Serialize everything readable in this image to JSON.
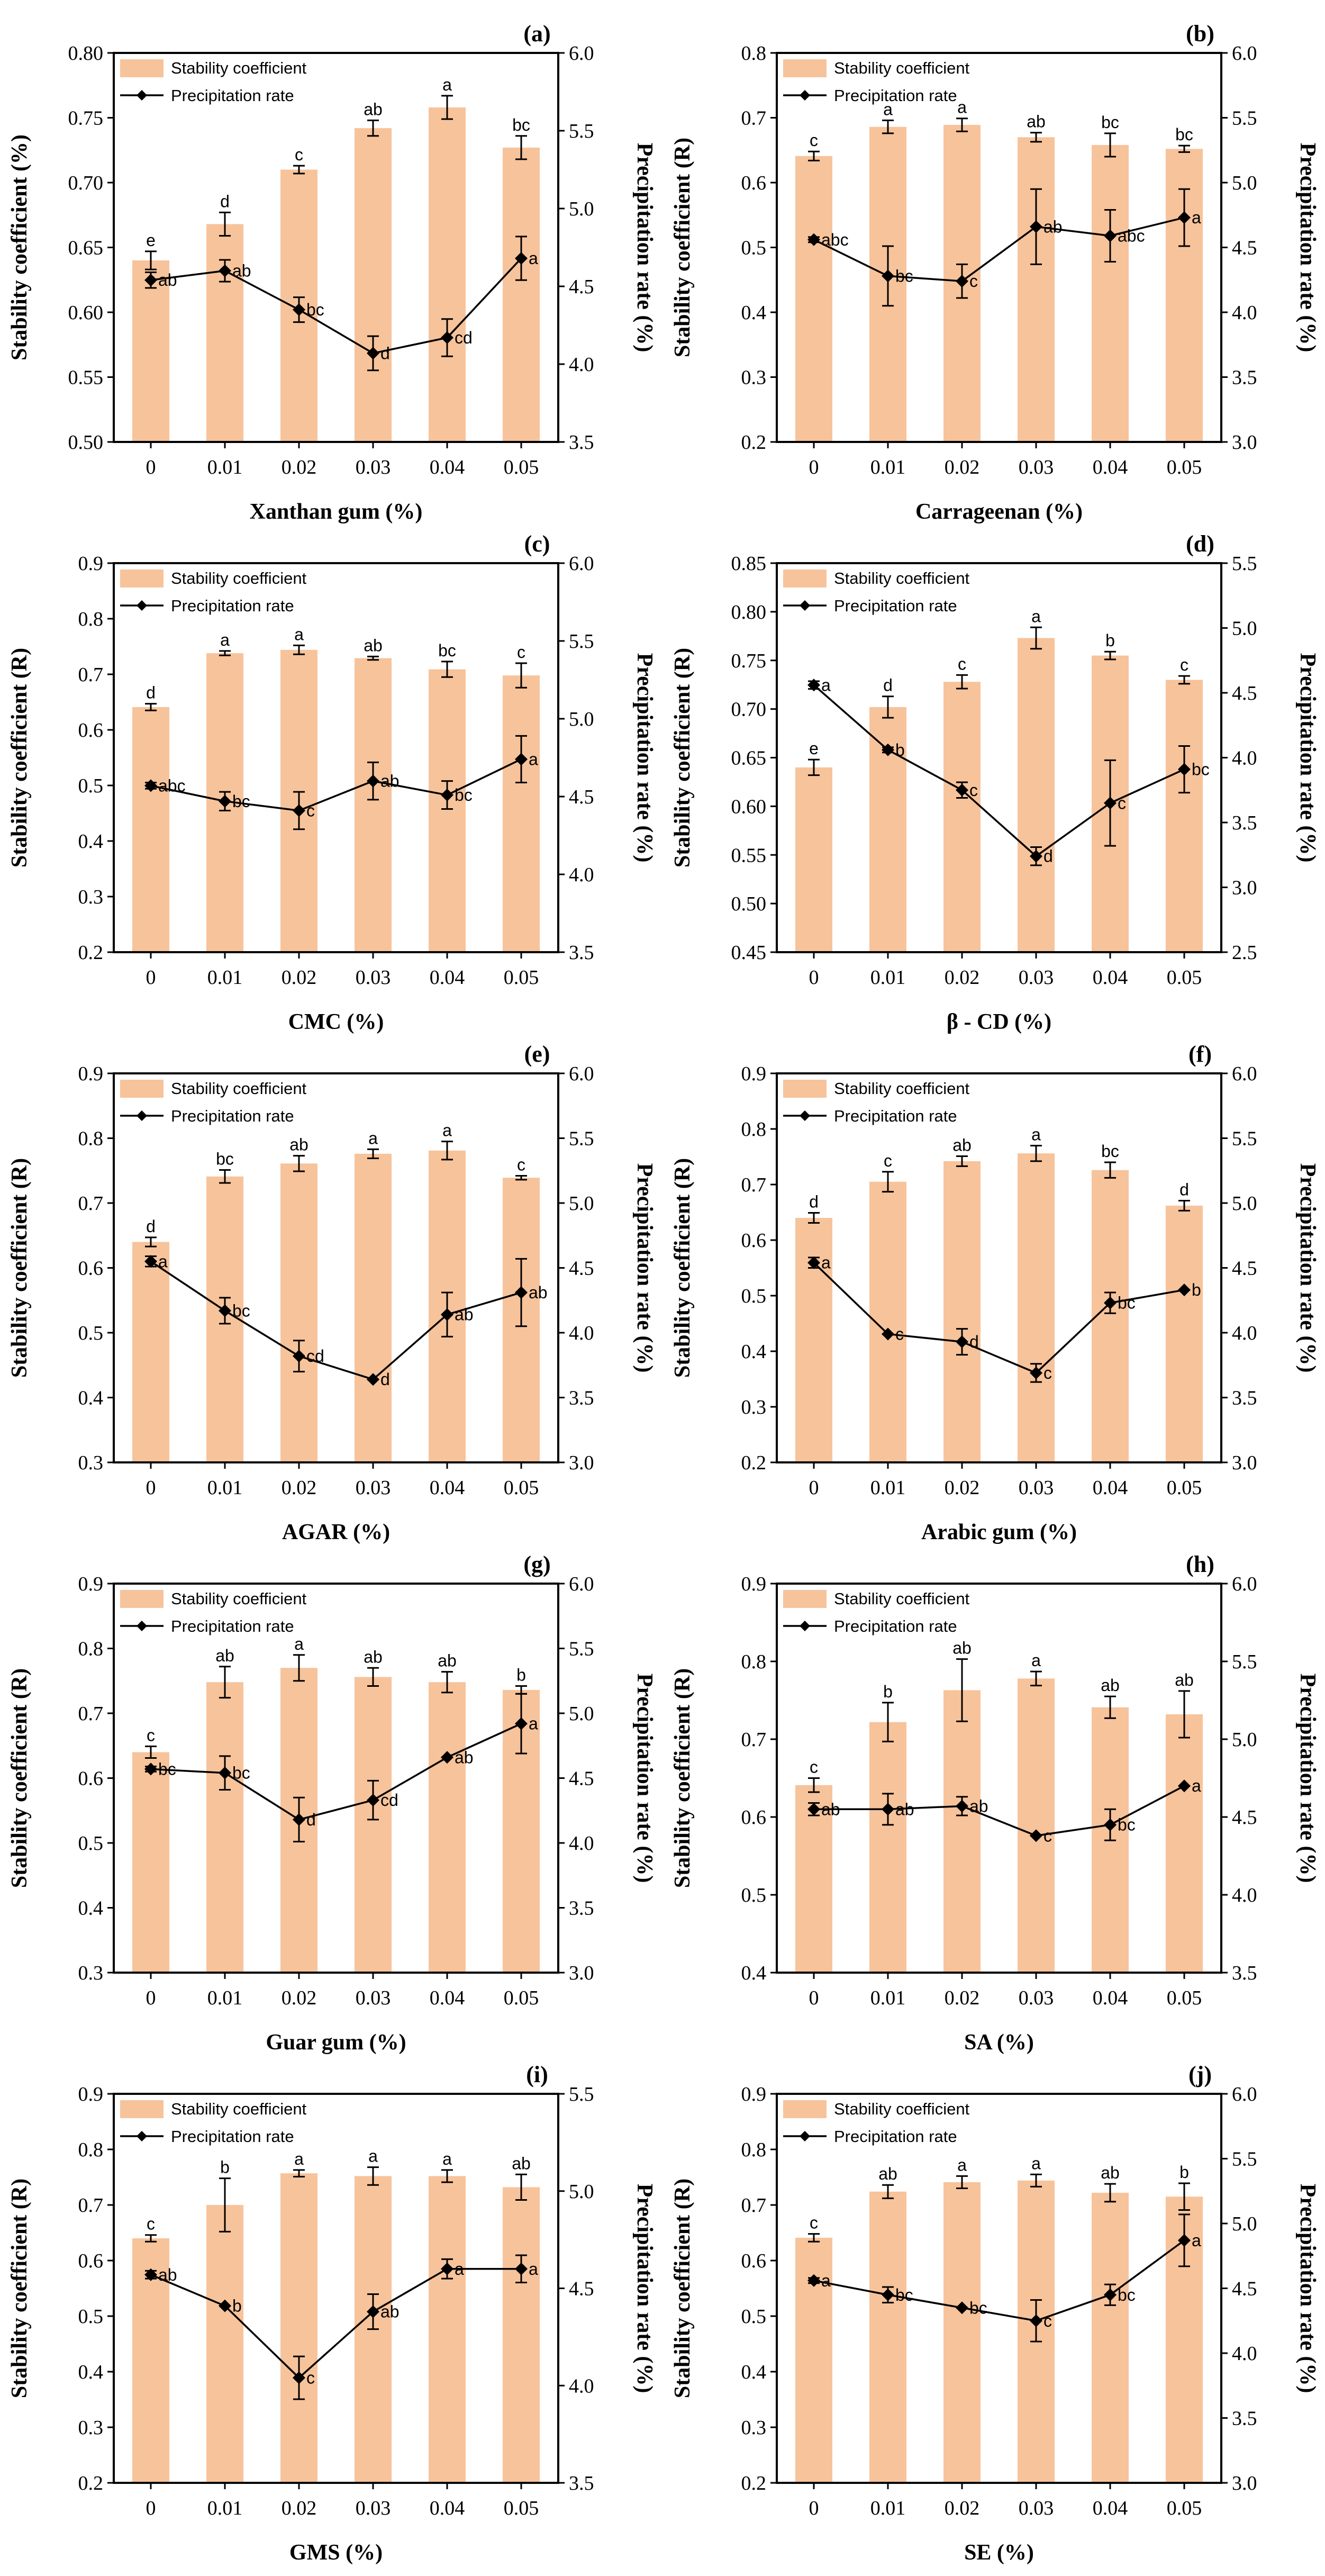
{
  "figure": {
    "legend": {
      "bar_label": "Stability coefficient",
      "line_label": "Precipitation rate"
    },
    "colors": {
      "bar": "#f7c39b",
      "line": "#000000",
      "marker": "#000000"
    }
  },
  "chart_data": [
    {
      "type": "bar+line",
      "panel": "(a)",
      "xlabel": "Xanthan gum (%)",
      "ylabel_left": "Stability coefficient (%)",
      "ylabel_right": "Precipitation rate (%)",
      "categories": [
        "0",
        "0.01",
        "0.02",
        "0.03",
        "0.04",
        "0.05"
      ],
      "left_ticks": [
        "0.50",
        "0.55",
        "0.60",
        "0.65",
        "0.70",
        "0.75",
        "0.80"
      ],
      "right_ticks": [
        "3.5",
        "4.0",
        "4.5",
        "5.0",
        "5.5",
        "6.0"
      ],
      "ylim_left": [
        0.5,
        0.8
      ],
      "ylim_right": [
        3.5,
        6.0
      ],
      "stability": [
        0.64,
        0.668,
        0.71,
        0.742,
        0.758,
        0.727
      ],
      "stability_err": [
        0.007,
        0.009,
        0.003,
        0.006,
        0.009,
        0.009
      ],
      "stability_letters": [
        "e",
        "d",
        "c",
        "ab",
        "a",
        "bc"
      ],
      "precip": [
        4.54,
        4.6,
        4.35,
        4.07,
        4.17,
        4.68
      ],
      "precip_err": [
        0.05,
        0.07,
        0.08,
        0.11,
        0.12,
        0.14
      ],
      "precip_letters": [
        "ab",
        "ab",
        "bc",
        "d",
        "cd",
        "a"
      ]
    },
    {
      "type": "bar+line",
      "panel": "(b)",
      "xlabel": "Carrageenan (%)",
      "ylabel_left": "Stability coefficient (R)",
      "ylabel_right": "Precipitation rate (%)",
      "categories": [
        "0",
        "0.01",
        "0.02",
        "0.03",
        "0.04",
        "0.05"
      ],
      "left_ticks": [
        "0.2",
        "0.3",
        "0.4",
        "0.5",
        "0.6",
        "0.7",
        "0.8"
      ],
      "right_ticks": [
        "3.0",
        "3.5",
        "4.0",
        "4.5",
        "5.0",
        "5.5",
        "6.0"
      ],
      "ylim_left": [
        0.2,
        0.8
      ],
      "ylim_right": [
        3.0,
        6.0
      ],
      "stability": [
        0.641,
        0.686,
        0.689,
        0.67,
        0.658,
        0.652
      ],
      "stability_err": [
        0.007,
        0.01,
        0.01,
        0.007,
        0.018,
        0.005
      ],
      "stability_letters": [
        "c",
        "a",
        "a",
        "ab",
        "bc",
        "bc"
      ],
      "precip": [
        4.56,
        4.28,
        4.24,
        4.66,
        4.59,
        4.73
      ],
      "precip_err": [
        0.02,
        0.23,
        0.13,
        0.29,
        0.2,
        0.22
      ],
      "precip_letters": [
        "abc",
        "bc",
        "c",
        "ab",
        "abc",
        "a"
      ]
    },
    {
      "type": "bar+line",
      "panel": "(c)",
      "xlabel": "CMC (%)",
      "ylabel_left": "Stability coefficient (R)",
      "ylabel_right": "Precipitation rate (%)",
      "categories": [
        "0",
        "0.01",
        "0.02",
        "0.03",
        "0.04",
        "0.05"
      ],
      "left_ticks": [
        "0.2",
        "0.3",
        "0.4",
        "0.5",
        "0.6",
        "0.7",
        "0.8",
        "0.9"
      ],
      "right_ticks": [
        "3.5",
        "4.0",
        "4.5",
        "5.0",
        "5.5",
        "6.0"
      ],
      "ylim_left": [
        0.2,
        0.9
      ],
      "ylim_right": [
        3.5,
        6.0
      ],
      "stability": [
        0.641,
        0.738,
        0.744,
        0.729,
        0.709,
        0.698
      ],
      "stability_err": [
        0.006,
        0.004,
        0.008,
        0.003,
        0.014,
        0.022
      ],
      "stability_letters": [
        "d",
        "a",
        "a",
        "ab",
        "bc",
        "c"
      ],
      "precip": [
        4.57,
        4.47,
        4.41,
        4.6,
        4.51,
        4.74
      ],
      "precip_err": [
        0.02,
        0.06,
        0.12,
        0.12,
        0.09,
        0.15
      ],
      "precip_letters": [
        "abc",
        "bc",
        "c",
        "ab",
        "bc",
        "a"
      ]
    },
    {
      "type": "bar+line",
      "panel": "(d)",
      "xlabel": "β - CD (%)",
      "ylabel_left": "Stability coefficient (R)",
      "ylabel_right": "Precipitation rate (%)",
      "categories": [
        "0",
        "0.01",
        "0.02",
        "0.03",
        "0.04",
        "0.05"
      ],
      "left_ticks": [
        "0.45",
        "0.50",
        "0.55",
        "0.60",
        "0.65",
        "0.70",
        "0.75",
        "0.80",
        "0.85"
      ],
      "right_ticks": [
        "2.5",
        "3.0",
        "3.5",
        "4.0",
        "4.5",
        "5.0",
        "5.5"
      ],
      "ylim_left": [
        0.45,
        0.85
      ],
      "ylim_right": [
        2.5,
        5.5
      ],
      "stability": [
        0.64,
        0.702,
        0.728,
        0.773,
        0.755,
        0.73
      ],
      "stability_err": [
        0.008,
        0.011,
        0.007,
        0.011,
        0.004,
        0.004
      ],
      "stability_letters": [
        "e",
        "d",
        "c",
        "a",
        "b",
        "c"
      ],
      "precip": [
        4.56,
        4.06,
        3.75,
        3.24,
        3.65,
        3.91
      ],
      "precip_err": [
        0.03,
        0.02,
        0.06,
        0.07,
        0.33,
        0.18
      ],
      "precip_letters": [
        "a",
        "b",
        "c",
        "d",
        "c",
        "bc"
      ]
    },
    {
      "type": "bar+line",
      "panel": "(e)",
      "xlabel": "AGAR (%)",
      "ylabel_left": "Stability coefficient (R)",
      "ylabel_right": "Precipitation rate (%)",
      "categories": [
        "0",
        "0.01",
        "0.02",
        "0.03",
        "0.04",
        "0.05"
      ],
      "left_ticks": [
        "0.3",
        "0.4",
        "0.5",
        "0.6",
        "0.7",
        "0.8",
        "0.9"
      ],
      "right_ticks": [
        "3.0",
        "3.5",
        "4.0",
        "4.5",
        "5.0",
        "5.5",
        "6.0"
      ],
      "ylim_left": [
        0.3,
        0.9
      ],
      "ylim_right": [
        3.0,
        6.0
      ],
      "stability": [
        0.64,
        0.741,
        0.761,
        0.776,
        0.781,
        0.739
      ],
      "stability_err": [
        0.007,
        0.01,
        0.012,
        0.007,
        0.014,
        0.003
      ],
      "stability_letters": [
        "d",
        "bc",
        "ab",
        "a",
        "a",
        "c"
      ],
      "precip": [
        4.55,
        4.17,
        3.82,
        3.64,
        4.14,
        4.31
      ],
      "precip_err": [
        0.04,
        0.1,
        0.12,
        0.0,
        0.17,
        0.26
      ],
      "precip_letters": [
        "a",
        "bc",
        "cd",
        "d",
        "ab",
        "ab"
      ]
    },
    {
      "type": "bar+line",
      "panel": "(f)",
      "xlabel": "Arabic gum (%)",
      "ylabel_left": "Stability coefficient (R)",
      "ylabel_right": "Precipitation rate (%)",
      "categories": [
        "0",
        "0.01",
        "0.02",
        "0.03",
        "0.04",
        "0.05"
      ],
      "left_ticks": [
        "0.2",
        "0.3",
        "0.4",
        "0.5",
        "0.6",
        "0.7",
        "0.8",
        "0.9"
      ],
      "right_ticks": [
        "3.0",
        "3.5",
        "4.0",
        "4.5",
        "5.0",
        "5.5",
        "6.0"
      ],
      "ylim_left": [
        0.2,
        0.9
      ],
      "ylim_right": [
        3.0,
        6.0
      ],
      "stability": [
        0.64,
        0.705,
        0.742,
        0.756,
        0.726,
        0.662
      ],
      "stability_err": [
        0.009,
        0.018,
        0.009,
        0.014,
        0.014,
        0.009
      ],
      "stability_letters": [
        "d",
        "c",
        "ab",
        "a",
        "bc",
        "d"
      ],
      "precip": [
        4.54,
        3.99,
        3.93,
        3.69,
        4.23,
        4.33
      ],
      "precip_err": [
        0.04,
        0.0,
        0.1,
        0.07,
        0.08,
        0.0
      ],
      "precip_letters": [
        "a",
        "c",
        "d",
        "c",
        "bc",
        "b"
      ]
    },
    {
      "type": "bar+line",
      "panel": "(g)",
      "xlabel": "Guar gum (%)",
      "ylabel_left": "Stability coefficient (R)",
      "ylabel_right": "Precipitation rate (%)",
      "categories": [
        "0",
        "0.01",
        "0.02",
        "0.03",
        "0.04",
        "0.05"
      ],
      "left_ticks": [
        "0.3",
        "0.4",
        "0.5",
        "0.6",
        "0.7",
        "0.8",
        "0.9"
      ],
      "right_ticks": [
        "3.0",
        "3.5",
        "4.0",
        "4.5",
        "5.0",
        "5.5",
        "6.0"
      ],
      "ylim_left": [
        0.3,
        0.9
      ],
      "ylim_right": [
        3.0,
        6.0
      ],
      "stability": [
        0.64,
        0.748,
        0.77,
        0.756,
        0.748,
        0.736
      ],
      "stability_err": [
        0.009,
        0.024,
        0.02,
        0.014,
        0.016,
        0.006
      ],
      "stability_letters": [
        "c",
        "ab",
        "a",
        "ab",
        "ab",
        "b"
      ],
      "precip": [
        4.57,
        4.54,
        4.18,
        4.33,
        4.66,
        4.92
      ],
      "precip_err": [
        0.02,
        0.13,
        0.17,
        0.15,
        0.0,
        0.23
      ],
      "precip_letters": [
        "bc",
        "bc",
        "d",
        "cd",
        "ab",
        "a"
      ]
    },
    {
      "type": "bar+line",
      "panel": "(h)",
      "xlabel": "SA (%)",
      "ylabel_left": "Stability coefficient (R)",
      "ylabel_right": "Precipitation rate (%)",
      "categories": [
        "0",
        "0.01",
        "0.02",
        "0.03",
        "0.04",
        "0.05"
      ],
      "left_ticks": [
        "0.4",
        "0.5",
        "0.6",
        "0.7",
        "0.8",
        "0.9"
      ],
      "right_ticks": [
        "3.5",
        "4.0",
        "4.5",
        "5.0",
        "5.5",
        "6.0"
      ],
      "ylim_left": [
        0.4,
        0.9
      ],
      "ylim_right": [
        3.5,
        6.0
      ],
      "stability": [
        0.641,
        0.722,
        0.763,
        0.778,
        0.741,
        0.732
      ],
      "stability_err": [
        0.009,
        0.025,
        0.04,
        0.009,
        0.014,
        0.03
      ],
      "stability_letters": [
        "c",
        "b",
        "ab",
        "a",
        "ab",
        "ab"
      ],
      "precip": [
        4.55,
        4.55,
        4.57,
        4.38,
        4.45,
        4.7
      ],
      "precip_err": [
        0.04,
        0.1,
        0.06,
        0.0,
        0.1,
        0.0
      ],
      "precip_letters": [
        "ab",
        "ab",
        "ab",
        "c",
        "bc",
        "a"
      ]
    },
    {
      "type": "bar+line",
      "panel": "(i)",
      "xlabel": "GMS (%)",
      "ylabel_left": "Stability coefficient (R)",
      "ylabel_right": "Precipitation rate (%)",
      "categories": [
        "0",
        "0.01",
        "0.02",
        "0.03",
        "0.04",
        "0.05"
      ],
      "left_ticks": [
        "0.2",
        "0.3",
        "0.4",
        "0.5",
        "0.6",
        "0.7",
        "0.8",
        "0.9"
      ],
      "right_ticks": [
        "3.5",
        "4.0",
        "4.5",
        "5.0",
        "5.5"
      ],
      "ylim_left": [
        0.2,
        0.9
      ],
      "ylim_right": [
        3.5,
        5.5
      ],
      "stability": [
        0.64,
        0.7,
        0.757,
        0.752,
        0.752,
        0.732
      ],
      "stability_err": [
        0.006,
        0.048,
        0.006,
        0.016,
        0.011,
        0.023
      ],
      "stability_letters": [
        "c",
        "b",
        "a",
        "a",
        "a",
        "ab"
      ],
      "precip": [
        4.57,
        4.41,
        4.04,
        4.38,
        4.6,
        4.6
      ],
      "precip_err": [
        0.02,
        0.0,
        0.11,
        0.09,
        0.05,
        0.07
      ],
      "precip_letters": [
        "ab",
        "b",
        "c",
        "ab",
        "a",
        "a"
      ]
    },
    {
      "type": "bar+line",
      "panel": "(j)",
      "xlabel": "SE (%)",
      "ylabel_left": "Stability coefficient (R)",
      "ylabel_right": "Precipitation rate (%)",
      "categories": [
        "0",
        "0.01",
        "0.02",
        "0.03",
        "0.04",
        "0.05"
      ],
      "left_ticks": [
        "0.2",
        "0.3",
        "0.4",
        "0.5",
        "0.6",
        "0.7",
        "0.8",
        "0.9"
      ],
      "right_ticks": [
        "3.0",
        "3.5",
        "4.0",
        "4.5",
        "5.0",
        "5.5",
        "6.0"
      ],
      "ylim_left": [
        0.2,
        0.9
      ],
      "ylim_right": [
        3.0,
        6.0
      ],
      "stability": [
        0.641,
        0.724,
        0.741,
        0.744,
        0.722,
        0.715
      ],
      "stability_err": [
        0.007,
        0.012,
        0.011,
        0.011,
        0.016,
        0.024
      ],
      "stability_letters": [
        "c",
        "ab",
        "a",
        "a",
        "ab",
        "b"
      ],
      "precip": [
        4.56,
        4.45,
        4.35,
        4.25,
        4.45,
        4.87
      ],
      "precip_err": [
        0.02,
        0.06,
        0.0,
        0.16,
        0.08,
        0.2
      ],
      "precip_letters": [
        "a",
        "bc",
        "bc",
        "c",
        "bc",
        "a"
      ]
    }
  ]
}
